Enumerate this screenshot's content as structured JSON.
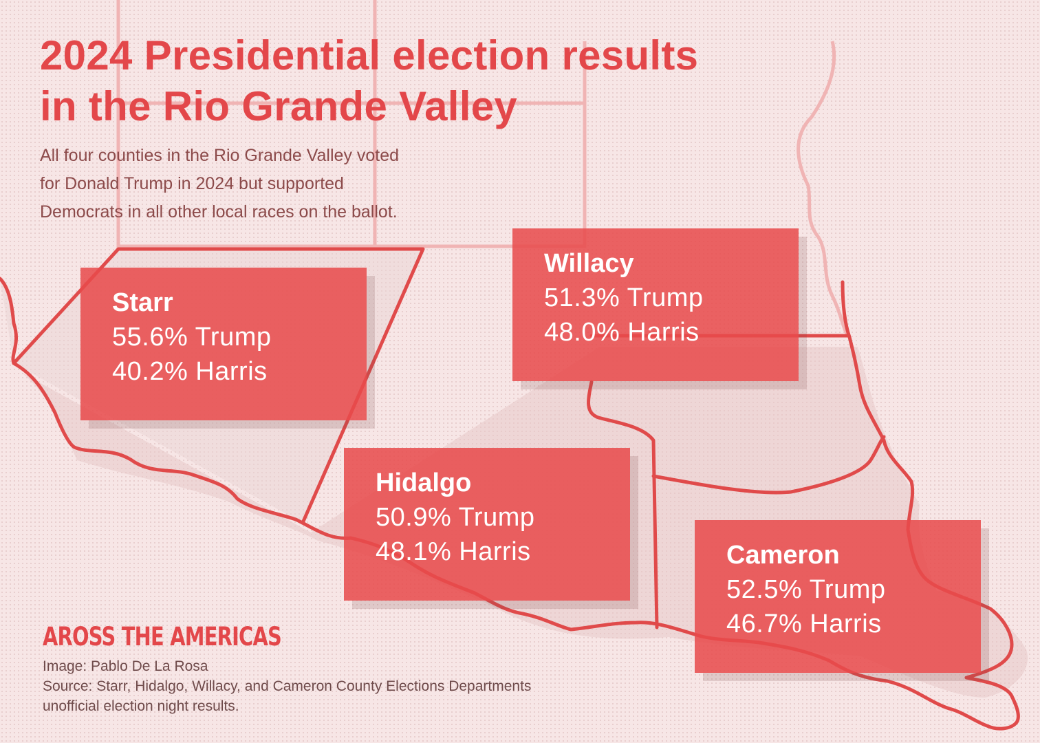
{
  "title": {
    "line1": "2024 Presidential election results",
    "line2": "in the Rio Grande Valley"
  },
  "subtitle": {
    "line1": "All four counties in the Rio Grande Valley voted",
    "line2": "for Donald Trump in 2024 but supported",
    "line3": "Democrats in all other local races on the ballot."
  },
  "counties": [
    {
      "name": "Starr",
      "trump": "55.6% Trump",
      "harris": "40.2% Harris"
    },
    {
      "name": "Willacy",
      "trump": "51.3% Trump",
      "harris": "48.0% Harris"
    },
    {
      "name": "Hidalgo",
      "trump": "50.9% Trump",
      "harris": "48.1% Harris"
    },
    {
      "name": "Cameron",
      "trump": "52.5% Trump",
      "harris": "46.7% Harris"
    }
  ],
  "brand": "AROSS THE AMERICAS",
  "credits": {
    "image": "Image: Pablo De La Rosa",
    "source_line1": "Source: Starr, Hidalgo, Willacy, and Cameron County Elections Departments",
    "source_line2": "unofficial election night results."
  },
  "colors": {
    "accent": "#e3474a",
    "background": "#f7e6e6",
    "card": "#e84a4c",
    "border": "#e04a4a",
    "faint_border": "#f0b4b4",
    "region_fill": "#e9cfcf"
  }
}
